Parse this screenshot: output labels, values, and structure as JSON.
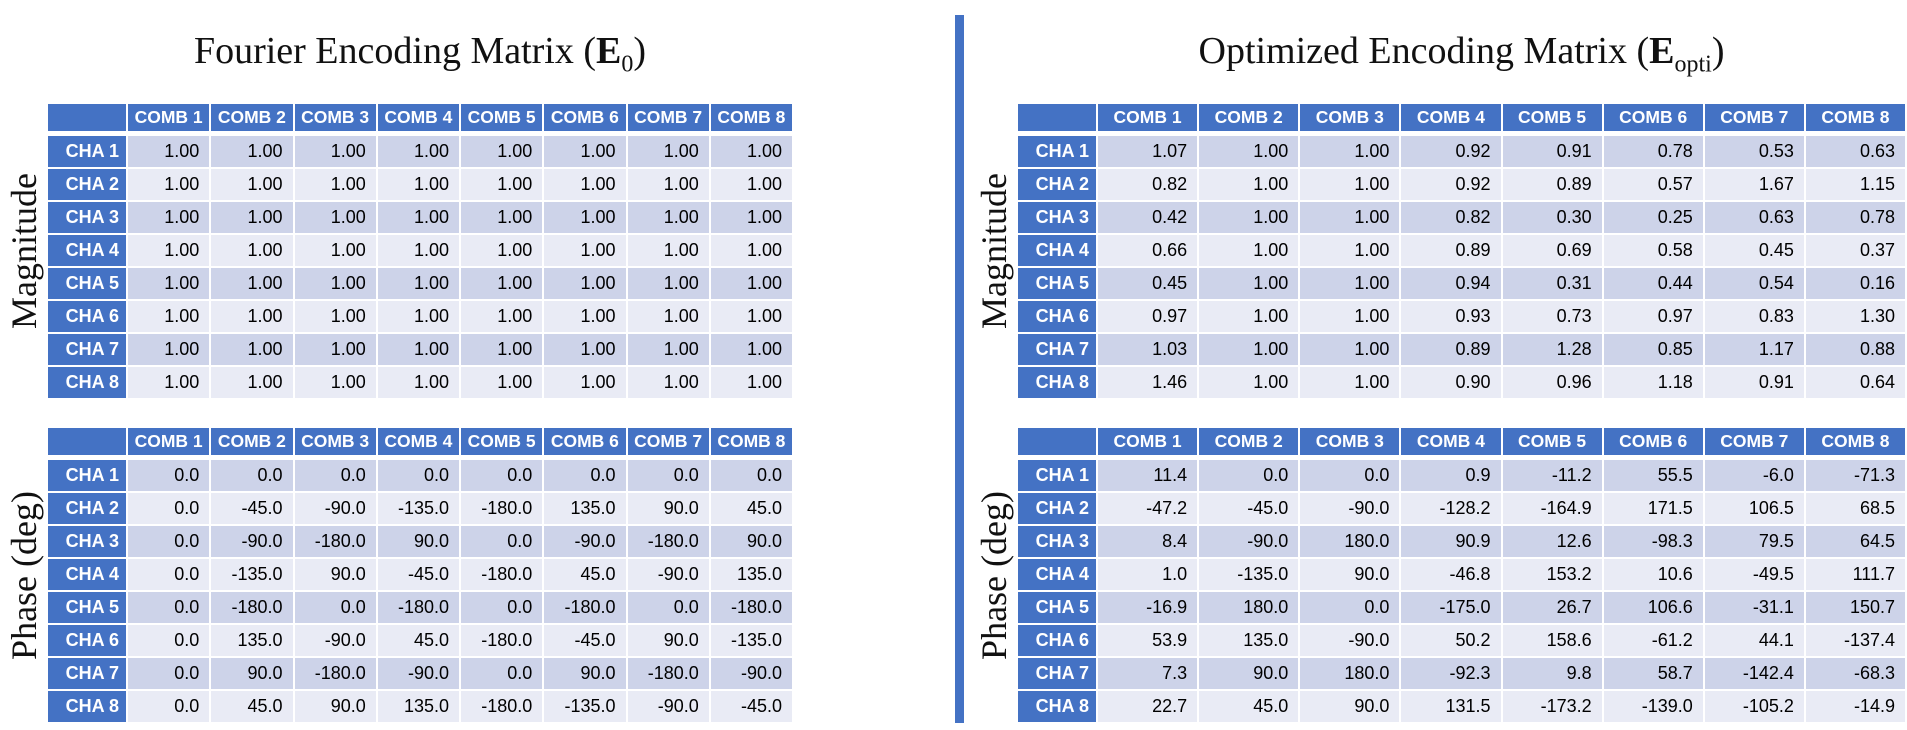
{
  "colors": {
    "header-blue": "#4472C4",
    "band-dark": "#CDD3E9",
    "band-light": "#E9EBF5",
    "divider-blue": "#4472C4"
  },
  "headers": {
    "combs": [
      "COMB 1",
      "COMB 2",
      "COMB 3",
      "COMB 4",
      "COMB 5",
      "COMB 6",
      "COMB 7",
      "COMB 8"
    ],
    "chas": [
      "CHA 1",
      "CHA 2",
      "CHA 3",
      "CHA 4",
      "CHA 5",
      "CHA 6",
      "CHA 7",
      "CHA 8"
    ]
  },
  "panels": [
    {
      "id": "fourier",
      "title": {
        "prefix": "Fourier Encoding Matrix (",
        "symbol": "E",
        "subscript": "0",
        "suffix": ")"
      },
      "sections": [
        {
          "label": "Magnitude",
          "rows": [
            [
              "1.00",
              "1.00",
              "1.00",
              "1.00",
              "1.00",
              "1.00",
              "1.00",
              "1.00"
            ],
            [
              "1.00",
              "1.00",
              "1.00",
              "1.00",
              "1.00",
              "1.00",
              "1.00",
              "1.00"
            ],
            [
              "1.00",
              "1.00",
              "1.00",
              "1.00",
              "1.00",
              "1.00",
              "1.00",
              "1.00"
            ],
            [
              "1.00",
              "1.00",
              "1.00",
              "1.00",
              "1.00",
              "1.00",
              "1.00",
              "1.00"
            ],
            [
              "1.00",
              "1.00",
              "1.00",
              "1.00",
              "1.00",
              "1.00",
              "1.00",
              "1.00"
            ],
            [
              "1.00",
              "1.00",
              "1.00",
              "1.00",
              "1.00",
              "1.00",
              "1.00",
              "1.00"
            ],
            [
              "1.00",
              "1.00",
              "1.00",
              "1.00",
              "1.00",
              "1.00",
              "1.00",
              "1.00"
            ],
            [
              "1.00",
              "1.00",
              "1.00",
              "1.00",
              "1.00",
              "1.00",
              "1.00",
              "1.00"
            ]
          ]
        },
        {
          "label": "Phase (deg)",
          "rows": [
            [
              "0.0",
              "0.0",
              "0.0",
              "0.0",
              "0.0",
              "0.0",
              "0.0",
              "0.0"
            ],
            [
              "0.0",
              "-45.0",
              "-90.0",
              "-135.0",
              "-180.0",
              "135.0",
              "90.0",
              "45.0"
            ],
            [
              "0.0",
              "-90.0",
              "-180.0",
              "90.0",
              "0.0",
              "-90.0",
              "-180.0",
              "90.0"
            ],
            [
              "0.0",
              "-135.0",
              "90.0",
              "-45.0",
              "-180.0",
              "45.0",
              "-90.0",
              "135.0"
            ],
            [
              "0.0",
              "-180.0",
              "0.0",
              "-180.0",
              "0.0",
              "-180.0",
              "0.0",
              "-180.0"
            ],
            [
              "0.0",
              "135.0",
              "-90.0",
              "45.0",
              "-180.0",
              "-45.0",
              "90.0",
              "-135.0"
            ],
            [
              "0.0",
              "90.0",
              "-180.0",
              "-90.0",
              "0.0",
              "90.0",
              "-180.0",
              "-90.0"
            ],
            [
              "0.0",
              "45.0",
              "90.0",
              "135.0",
              "-180.0",
              "-135.0",
              "-90.0",
              "-45.0"
            ]
          ]
        }
      ]
    },
    {
      "id": "optimized",
      "title": {
        "prefix": "Optimized Encoding Matrix (",
        "symbol": "E",
        "subscript": "opti",
        "suffix": ")"
      },
      "sections": [
        {
          "label": "Magnitude",
          "rows": [
            [
              "1.07",
              "1.00",
              "1.00",
              "0.92",
              "0.91",
              "0.78",
              "0.53",
              "0.63"
            ],
            [
              "0.82",
              "1.00",
              "1.00",
              "0.92",
              "0.89",
              "0.57",
              "1.67",
              "1.15"
            ],
            [
              "0.42",
              "1.00",
              "1.00",
              "0.82",
              "0.30",
              "0.25",
              "0.63",
              "0.78"
            ],
            [
              "0.66",
              "1.00",
              "1.00",
              "0.89",
              "0.69",
              "0.58",
              "0.45",
              "0.37"
            ],
            [
              "0.45",
              "1.00",
              "1.00",
              "0.94",
              "0.31",
              "0.44",
              "0.54",
              "0.16"
            ],
            [
              "0.97",
              "1.00",
              "1.00",
              "0.93",
              "0.73",
              "0.97",
              "0.83",
              "1.30"
            ],
            [
              "1.03",
              "1.00",
              "1.00",
              "0.89",
              "1.28",
              "0.85",
              "1.17",
              "0.88"
            ],
            [
              "1.46",
              "1.00",
              "1.00",
              "0.90",
              "0.96",
              "1.18",
              "0.91",
              "0.64"
            ]
          ]
        },
        {
          "label": "Phase (deg)",
          "rows": [
            [
              "11.4",
              "0.0",
              "0.0",
              "0.9",
              "-11.2",
              "55.5",
              "-6.0",
              "-71.3"
            ],
            [
              "-47.2",
              "-45.0",
              "-90.0",
              "-128.2",
              "-164.9",
              "171.5",
              "106.5",
              "68.5"
            ],
            [
              "8.4",
              "-90.0",
              "180.0",
              "90.9",
              "12.6",
              "-98.3",
              "79.5",
              "64.5"
            ],
            [
              "1.0",
              "-135.0",
              "90.0",
              "-46.8",
              "153.2",
              "10.6",
              "-49.5",
              "111.7"
            ],
            [
              "-16.9",
              "180.0",
              "0.0",
              "-175.0",
              "26.7",
              "106.6",
              "-31.1",
              "150.7"
            ],
            [
              "53.9",
              "135.0",
              "-90.0",
              "50.2",
              "158.6",
              "-61.2",
              "44.1",
              "-137.4"
            ],
            [
              "7.3",
              "90.0",
              "180.0",
              "-92.3",
              "9.8",
              "58.7",
              "-142.4",
              "-68.3"
            ],
            [
              "22.7",
              "45.0",
              "90.0",
              "131.5",
              "-173.2",
              "-139.0",
              "-105.2",
              "-14.9"
            ]
          ]
        }
      ]
    }
  ]
}
